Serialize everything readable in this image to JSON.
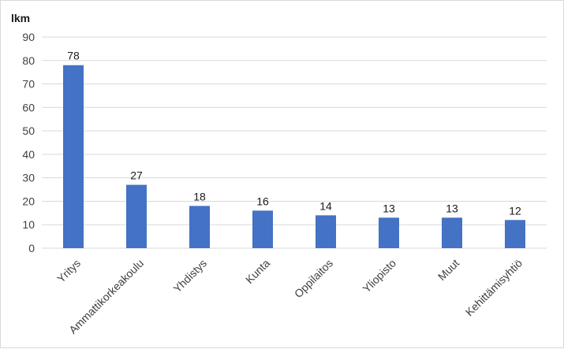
{
  "chart_data": {
    "type": "bar",
    "title": "",
    "ylabel": "lkm",
    "xlabel": "",
    "categories": [
      "Yritys",
      "Ammattikorkeakoulu",
      "Yhdistys",
      "Kunta",
      "Oppilaitos",
      "Yliopisto",
      "Muut",
      "Kehittämisyhtiö"
    ],
    "values": [
      78,
      27,
      18,
      16,
      14,
      13,
      13,
      12
    ],
    "ylim": [
      0,
      90
    ],
    "yticks": [
      0,
      10,
      20,
      30,
      40,
      50,
      60,
      70,
      80,
      90
    ],
    "grid": true,
    "legend": "none",
    "bar_color": "#4472c4",
    "grid_color": "#d9d9d9"
  }
}
